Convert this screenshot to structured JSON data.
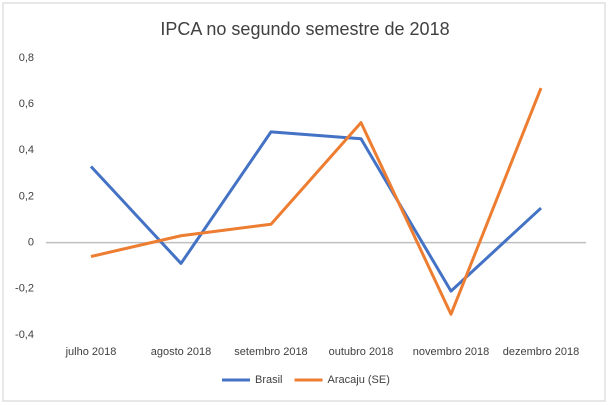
{
  "chart_data": {
    "type": "line",
    "title": "IPCA no segundo semestre de 2018",
    "categories": [
      "julho 2018",
      "agosto 2018",
      "setembro 2018",
      "outubro 2018",
      "novembro 2018",
      "dezembro 2018"
    ],
    "series": [
      {
        "name": "Brasil",
        "color": "#4472c4",
        "values": [
          0.33,
          -0.09,
          0.48,
          0.45,
          -0.21,
          0.15
        ]
      },
      {
        "name": "Aracaju (SE)",
        "color": "#ed7d31",
        "values": [
          -0.06,
          0.03,
          0.08,
          0.52,
          -0.31,
          0.67
        ]
      }
    ],
    "ylim": [
      -0.4,
      0.8
    ],
    "yticks": [
      {
        "value": -0.4,
        "label": "-0,4"
      },
      {
        "value": -0.2,
        "label": "-0,2"
      },
      0,
      {
        "value": 0.2,
        "label": "0,2"
      },
      {
        "value": 0.4,
        "label": "0,4"
      },
      {
        "value": 0.6,
        "label": "0,6"
      },
      {
        "value": 0.8,
        "label": "0,8"
      }
    ],
    "grid": false,
    "legend": "bottom"
  }
}
